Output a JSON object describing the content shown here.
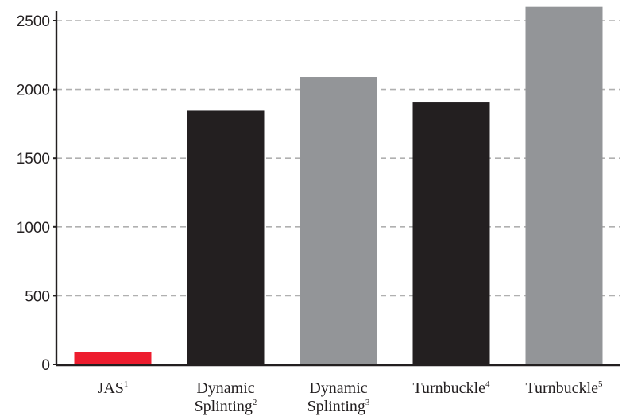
{
  "chart_data": {
    "type": "bar",
    "categories": [
      {
        "text": "JAS",
        "sup": "1",
        "line2": "",
        "line2_sup": ""
      },
      {
        "text": "Dynamic",
        "sup": "",
        "line2": "Splinting",
        "line2_sup": "2"
      },
      {
        "text": "Dynamic",
        "sup": "",
        "line2": "Splinting",
        "line2_sup": "3"
      },
      {
        "text": "Turnbuckle",
        "sup": "4",
        "line2": "",
        "line2_sup": ""
      },
      {
        "text": "Turnbuckle",
        "sup": "5",
        "line2": "",
        "line2_sup": ""
      }
    ],
    "values": [
      90,
      1845,
      2090,
      1905,
      2600
    ],
    "colors": [
      "#ed1c2e",
      "#231f20",
      "#939598",
      "#231f20",
      "#939598"
    ],
    "ylim": [
      0,
      2600
    ],
    "yticks": [
      "0",
      "500",
      "1000",
      "1500",
      "2000",
      "2500"
    ],
    "grid": true,
    "grid_color": "#b0b0b0",
    "axis_color": "#231f20",
    "title": "",
    "xlabel": "",
    "ylabel": ""
  }
}
